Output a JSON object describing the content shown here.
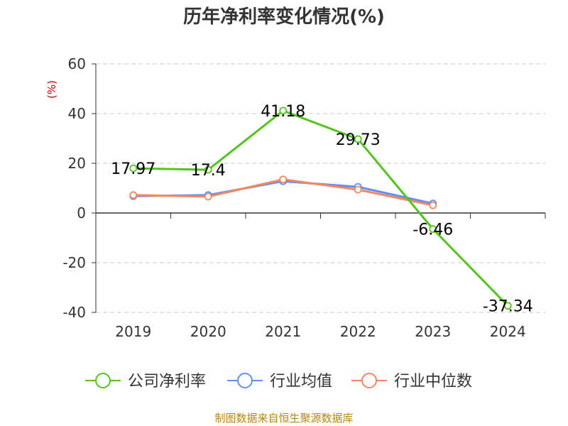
{
  "chart_data": {
    "type": "line",
    "title": "历年净利率变化情况(%)",
    "ylabel": "(%)",
    "categories": [
      "2019",
      "2020",
      "2021",
      "2022",
      "2023",
      "2024"
    ],
    "ylim": [
      -40,
      60
    ],
    "yticks": [
      "60",
      "40",
      "20",
      "0",
      "-20",
      "-40"
    ],
    "grid": true,
    "legend_position": "bottom",
    "series": [
      {
        "name": "公司净利率",
        "color": "#52c41a",
        "values": [
          17.97,
          17.4,
          41.18,
          29.73,
          -6.46,
          -37.34
        ],
        "labels": [
          "17.97",
          "17.4",
          "41.18",
          "29.73",
          "-6.46",
          "-37.34"
        ]
      },
      {
        "name": "行业均值",
        "color": "#5b8ff9",
        "values": [
          6.8,
          7.2,
          12.8,
          10.5,
          3.8,
          null
        ]
      },
      {
        "name": "行业中位数",
        "color": "#f4875e",
        "values": [
          7.2,
          6.6,
          13.5,
          9.4,
          3.1,
          null
        ]
      }
    ]
  },
  "source": "制图数据来自恒生聚源数据库"
}
